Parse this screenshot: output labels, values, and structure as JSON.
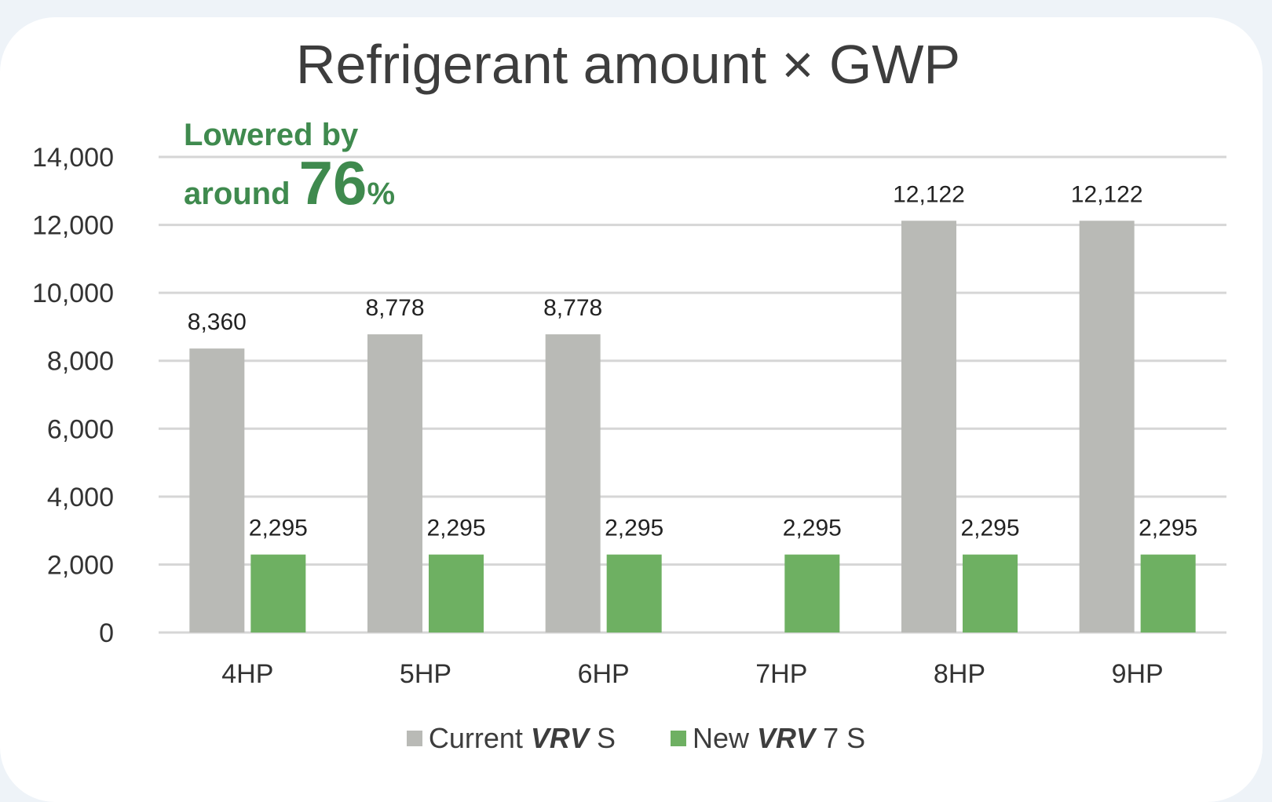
{
  "chart_data": {
    "type": "bar",
    "title": "Refrigerant amount × GWP",
    "categories": [
      "4HP",
      "5HP",
      "6HP",
      "7HP",
      "8HP",
      "9HP"
    ],
    "series": [
      {
        "name": "Current VRV S",
        "name_prefix": "Current",
        "name_brand": "VRV",
        "name_suffix": "S",
        "color": "#b9bab6",
        "values": [
          8360,
          8778,
          8778,
          null,
          12122,
          12122
        ],
        "labels": [
          "8,360",
          "8,778",
          "8,778",
          "",
          "12,122",
          "12,122"
        ]
      },
      {
        "name": "New VRV 7 S",
        "name_prefix": "New",
        "name_brand": "VRV",
        "name_suffix": "7 S",
        "color": "#6eb062",
        "values": [
          2295,
          2295,
          2295,
          2295,
          2295,
          2295
        ],
        "labels": [
          "2,295",
          "2,295",
          "2,295",
          "2,295",
          "2,295",
          "2,295"
        ]
      }
    ],
    "ylim": [
      0,
      14000
    ],
    "yticks": [
      0,
      2000,
      4000,
      6000,
      8000,
      10000,
      12000,
      14000
    ],
    "ytick_labels": [
      "0",
      "2,000",
      "4,000",
      "6,000",
      "8,000",
      "10,000",
      "12,000",
      "14,000"
    ],
    "grid": true,
    "legend_position": "bottom-center",
    "annotation": {
      "line1": "Lowered by",
      "line2_prefix": "around",
      "value": "76",
      "unit": "%",
      "color": "#3f8a4e"
    }
  }
}
